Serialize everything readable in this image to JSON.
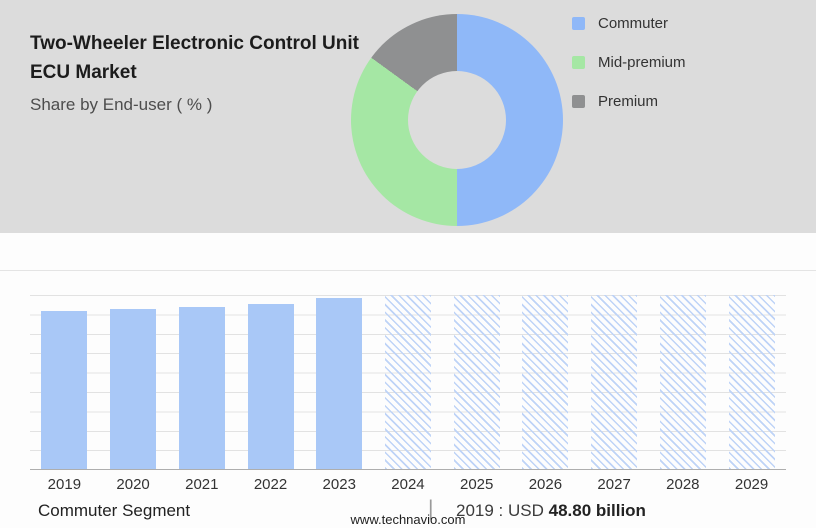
{
  "header": {
    "title": "Two-Wheeler Electronic Control Unit ECU Market",
    "subtitle": "Share by End-user ( % )"
  },
  "donut": {
    "segments": [
      {
        "label": "Commuter",
        "color": "#8fb8f8",
        "percent": 50
      },
      {
        "label": "Mid-premium",
        "color": "#a5e7a4",
        "percent": 35
      },
      {
        "label": "Premium",
        "color": "#8f9091",
        "percent": 15
      }
    ]
  },
  "chart_data": {
    "type": "bar",
    "title": "Two-Wheeler Electronic Control Unit ECU Market size by year",
    "categories": [
      "2019",
      "2020",
      "2021",
      "2022",
      "2023",
      "2024",
      "2025",
      "2026",
      "2027",
      "2028",
      "2029"
    ],
    "solid_color": "#a9c8f7",
    "hatch_color": "#bed3f7",
    "grid": true,
    "known_values": {
      "2019": "USD 48.80 billion"
    },
    "bars": [
      {
        "year": "2019",
        "height_pct": 91,
        "style": "solid"
      },
      {
        "year": "2020",
        "height_pct": 92,
        "style": "solid"
      },
      {
        "year": "2021",
        "height_pct": 93,
        "style": "solid"
      },
      {
        "year": "2022",
        "height_pct": 95,
        "style": "solid"
      },
      {
        "year": "2023",
        "height_pct": 98,
        "style": "solid"
      },
      {
        "year": "2024",
        "height_pct": 100,
        "style": "hatched"
      },
      {
        "year": "2025",
        "height_pct": 100,
        "style": "hatched"
      },
      {
        "year": "2026",
        "height_pct": 100,
        "style": "hatched"
      },
      {
        "year": "2027",
        "height_pct": 100,
        "style": "hatched"
      },
      {
        "year": "2028",
        "height_pct": 100,
        "style": "hatched"
      },
      {
        "year": "2029",
        "height_pct": 100,
        "style": "hatched"
      }
    ]
  },
  "footer": {
    "segment_label": "Commuter Segment",
    "separator": "|",
    "value_prefix": "2019 : USD",
    "value_bold": "48.80 billion",
    "website": "www.technavio.com"
  }
}
